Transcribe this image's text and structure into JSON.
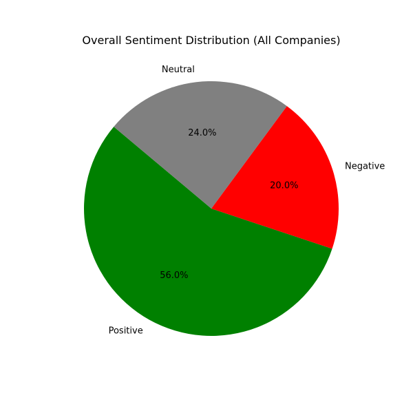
{
  "chart_data": {
    "type": "pie",
    "title": "Overall Sentiment Distribution (All Companies)",
    "slices": [
      {
        "label": "Positive",
        "value": 56.0,
        "pct_label": "56.0%",
        "color": "#008000"
      },
      {
        "label": "Negative",
        "value": 20.0,
        "pct_label": "20.0%",
        "color": "#ff0000"
      },
      {
        "label": "Neutral",
        "value": 24.0,
        "pct_label": "24.0%",
        "color": "#808080"
      }
    ],
    "start_angle_deg": 140,
    "direction": "counterclockwise",
    "legend": "none"
  }
}
